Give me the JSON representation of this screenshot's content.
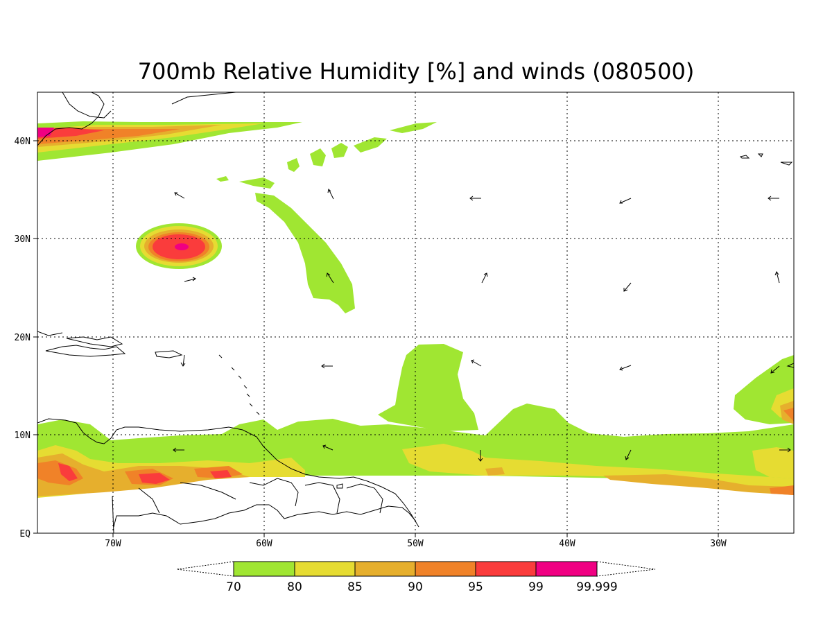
{
  "title": "700mb Relative Humidity [%] and winds (080500)",
  "lat_labels": [
    "40N",
    "30N",
    "20N",
    "10N",
    "EQ"
  ],
  "lon_labels": [
    "70W",
    "60W",
    "50W",
    "40W",
    "30W"
  ],
  "colorbar": {
    "labels": [
      "70",
      "80",
      "85",
      "90",
      "95",
      "99",
      "99.999"
    ],
    "colors": [
      "#a0e632",
      "#e6dc32",
      "#e6af2d",
      "#f08228",
      "#fa3c3c",
      "#f00082"
    ]
  },
  "colors": {
    "rh70": "#a0e632",
    "rh80": "#e6dc32",
    "rh85": "#e6af2d",
    "rh90": "#f08228",
    "rh95": "#fa3c3c",
    "rh99": "#f00082"
  }
}
